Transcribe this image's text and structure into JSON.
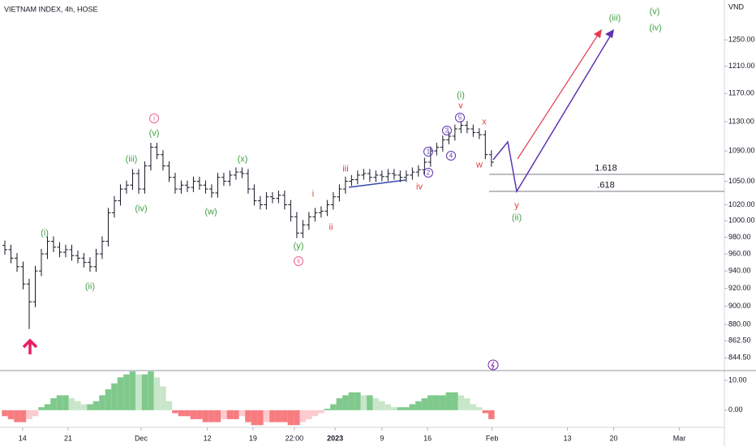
{
  "chart_data": [
    {
      "type": "ohlc",
      "title": "VIETNAM INDEX, 4h, HOSE",
      "currency": "VND",
      "log_scale": true,
      "color": "#131722",
      "ylim": [
        833,
        1313
      ],
      "yticks": [
        {
          "value": 1250,
          "label": "1250.00"
        },
        {
          "value": 1210,
          "label": "1210.00"
        },
        {
          "value": 1170,
          "label": "1170.00"
        },
        {
          "value": 1130,
          "label": "1130.00"
        },
        {
          "value": 1090,
          "label": "1090.00"
        },
        {
          "value": 1050,
          "label": "1050.00"
        },
        {
          "value": 1020,
          "label": "1020.00"
        },
        {
          "value": 1000,
          "label": "1000.00"
        },
        {
          "value": 980,
          "label": "980.00"
        },
        {
          "value": 960,
          "label": "960.00"
        },
        {
          "value": 940,
          "label": "940.00"
        },
        {
          "value": 920,
          "label": "920.00"
        },
        {
          "value": 900,
          "label": "900.00"
        },
        {
          "value": 880,
          "label": "880.00"
        },
        {
          "value": 862.5,
          "label": "862.50"
        },
        {
          "value": 844.5,
          "label": "844.50"
        }
      ],
      "xlim": [
        -0.8,
        118.3
      ],
      "xticks": [
        {
          "value": 2.9,
          "label": "14"
        },
        {
          "value": 10.4,
          "label": "21"
        },
        {
          "value": 22.4,
          "label": "Dec"
        },
        {
          "value": 33.3,
          "label": "12"
        },
        {
          "value": 40.8,
          "label": "19"
        },
        {
          "value": 47.6,
          "label": "22:00"
        },
        {
          "value": 54.3,
          "label": "2023"
        },
        {
          "value": 62,
          "label": "9"
        },
        {
          "value": 69.5,
          "label": "16"
        },
        {
          "value": 80.1,
          "label": "Feb"
        },
        {
          "value": 92.5,
          "label": "13"
        },
        {
          "value": 100.1,
          "label": "20"
        },
        {
          "value": 110.9,
          "label": "Mar"
        }
      ],
      "open": [
        970,
        965,
        955,
        945,
        925,
        905,
        940,
        960,
        975,
        968,
        962,
        965,
        958,
        955,
        950,
        945,
        960,
        975,
        1010,
        1025,
        1040,
        1045,
        1060,
        1040,
        1070,
        1095,
        1085,
        1070,
        1055,
        1040,
        1045,
        1042,
        1050,
        1045,
        1040,
        1035,
        1055,
        1050,
        1058,
        1062,
        1060,
        1040,
        1025,
        1020,
        1030,
        1028,
        1032,
        1020,
        1005,
        985,
        995,
        1005,
        1010,
        1012,
        1020,
        1030,
        1040,
        1050,
        1052,
        1058,
        1060,
        1055,
        1058,
        1056,
        1060,
        1058,
        1055,
        1058,
        1062,
        1065,
        1075,
        1090,
        1095,
        1105,
        1110,
        1120,
        1125,
        1120,
        1115,
        1112,
        1085
      ],
      "high": [
        976,
        971,
        961,
        951,
        931,
        946,
        966,
        981,
        981,
        974,
        971,
        971,
        964,
        961,
        956,
        966,
        981,
        1016,
        1031,
        1046,
        1051,
        1066,
        1066,
        1076,
        1101,
        1101,
        1091,
        1076,
        1061,
        1051,
        1051,
        1056,
        1056,
        1051,
        1046,
        1061,
        1061,
        1064,
        1068,
        1068,
        1066,
        1046,
        1031,
        1036,
        1036,
        1038,
        1038,
        1026,
        1011,
        1001,
        1011,
        1016,
        1018,
        1026,
        1036,
        1046,
        1056,
        1058,
        1064,
        1066,
        1066,
        1064,
        1064,
        1066,
        1066,
        1064,
        1064,
        1068,
        1071,
        1081,
        1096,
        1101,
        1111,
        1116,
        1126,
        1131,
        1131,
        1126,
        1121,
        1118,
        1091
      ],
      "low": [
        959,
        949,
        939,
        919,
        875,
        899,
        934,
        954,
        962,
        956,
        956,
        952,
        949,
        944,
        939,
        939,
        954,
        969,
        1004,
        1019,
        1034,
        1039,
        1034,
        1034,
        1064,
        1079,
        1064,
        1049,
        1034,
        1034,
        1036,
        1036,
        1039,
        1034,
        1029,
        1029,
        1044,
        1044,
        1052,
        1054,
        1034,
        1019,
        1014,
        1014,
        1022,
        1022,
        1014,
        999,
        979,
        979,
        989,
        999,
        1004,
        1006,
        1014,
        1024,
        1034,
        1044,
        1046,
        1052,
        1049,
        1049,
        1050,
        1050,
        1052,
        1049,
        1049,
        1052,
        1056,
        1059,
        1069,
        1084,
        1089,
        1099,
        1104,
        1114,
        1114,
        1109,
        1106,
        1079,
        1069
      ],
      "close": [
        965,
        955,
        945,
        925,
        905,
        940,
        960,
        975,
        968,
        962,
        965,
        958,
        955,
        950,
        945,
        960,
        975,
        1010,
        1025,
        1040,
        1045,
        1060,
        1040,
        1070,
        1095,
        1085,
        1070,
        1055,
        1040,
        1045,
        1042,
        1050,
        1045,
        1040,
        1035,
        1055,
        1050,
        1058,
        1062,
        1060,
        1040,
        1025,
        1020,
        1030,
        1028,
        1032,
        1020,
        1005,
        985,
        995,
        1005,
        1010,
        1012,
        1020,
        1030,
        1040,
        1050,
        1052,
        1058,
        1060,
        1055,
        1058,
        1056,
        1060,
        1058,
        1055,
        1058,
        1062,
        1065,
        1075,
        1090,
        1095,
        1105,
        1110,
        1120,
        1125,
        1120,
        1115,
        1112,
        1085,
        1075
      ],
      "annotations": [
        {
          "text": "i",
          "color": "#f06292"
        },
        {
          "text": "(v)",
          "color": "#43a047"
        },
        {
          "text": "(iii)",
          "color": "#43a047"
        },
        {
          "text": "(iv)",
          "color": "#43a047"
        },
        {
          "text": "(x)",
          "color": "#43a047"
        },
        {
          "text": "(w)",
          "color": "#43a047"
        },
        {
          "text": "(y)",
          "color": "#43a047"
        },
        {
          "text": "ii",
          "color": "#f06292"
        },
        {
          "text": "(i)",
          "color": "#43a047"
        },
        {
          "text": "(ii)",
          "color": "#43a047"
        },
        {
          "text": "i",
          "color": "#e53935"
        },
        {
          "text": "ii",
          "color": "#e53935"
        },
        {
          "text": "iii",
          "color": "#e53935"
        },
        {
          "text": "iv",
          "color": "#e53935"
        },
        {
          "text": "v",
          "color": "#e53935"
        },
        {
          "text": "(i)",
          "color": "#43a047"
        },
        {
          "text": "1",
          "color": "#5e35b1"
        },
        {
          "text": "2",
          "color": "#5e35b1"
        },
        {
          "text": "3",
          "color": "#5e35b1"
        },
        {
          "text": "4",
          "color": "#5e35b1"
        },
        {
          "text": "5",
          "color": "#5e35b1"
        },
        {
          "text": "x",
          "color": "#e53935"
        },
        {
          "text": "w",
          "color": "#e53935"
        },
        {
          "text": "y",
          "color": "#e53935"
        },
        {
          "text": "(ii)",
          "color": "#43a047"
        },
        {
          "text": "(iii)",
          "color": "#43a047"
        },
        {
          "text": "(iv)",
          "color": "#43a047"
        },
        {
          "text": "(v)",
          "color": "#43a047"
        },
        {
          "text": "1.618",
          "color": "#131722"
        },
        {
          "text": ".618",
          "color": "#131722"
        }
      ]
    },
    {
      "type": "bar",
      "colors": {
        "up_rising": "#7fc98c",
        "up_falling": "#c8e6c9",
        "down_falling": "#f77c80",
        "down_rising": "#fccbcd"
      },
      "ylim": [
        -5.2,
        13
      ],
      "yticks": [
        {
          "value": 10,
          "label": "10.00"
        },
        {
          "value": 0,
          "label": "0.00"
        }
      ],
      "values": [
        -2,
        -3,
        -4,
        -4,
        -3,
        -2,
        1,
        2,
        4,
        5,
        5,
        4,
        3,
        2,
        2,
        3,
        5,
        7,
        9,
        11,
        12,
        13,
        12,
        12,
        13,
        11,
        8,
        3,
        -1,
        -2,
        -2,
        -3,
        -3,
        -4,
        -4,
        -4,
        -3,
        -3,
        -3,
        -2,
        -4,
        -5,
        -5,
        -4,
        -4,
        -4,
        -4,
        -5,
        -5,
        -4,
        -3,
        -2,
        -1,
        0.5,
        2,
        4,
        5,
        6,
        6,
        5,
        5,
        4,
        3,
        2,
        1,
        1,
        1,
        2,
        3,
        4,
        5,
        5,
        5,
        6,
        6,
        5,
        4,
        2,
        1,
        -1,
        -3
      ]
    }
  ]
}
